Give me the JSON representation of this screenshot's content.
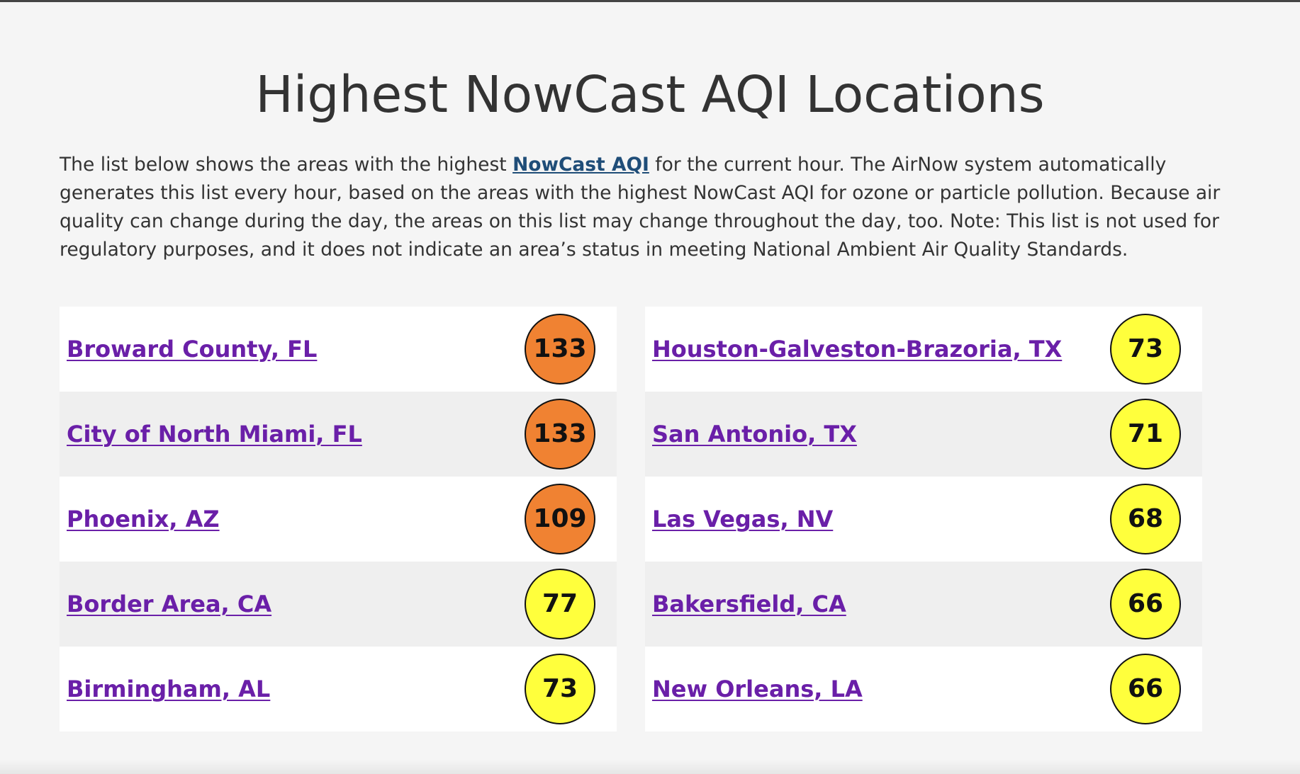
{
  "page": {
    "title": "Highest NowCast AQI Locations",
    "intro_before": "The list below shows the areas with the highest ",
    "intro_link": "NowCast AQI",
    "intro_after": " for the current hour. The AirNow system automatically generates this list every hour, based on the areas with the highest NowCast AQI for ozone or particle pollution. Because air quality can change during the day, the areas on this list may change throughout the day, too. Note: This list is not used for regulatory purposes, and it does not indicate an area’s status in meeting National Ambient Air Quality Standards."
  },
  "colors": {
    "orange": "#f08232",
    "yellow": "#ffff3c",
    "link": "#6a1fa8",
    "intro_link": "#1f4d78"
  },
  "left_column": [
    {
      "location": "Broward County, FL",
      "aqi": "133",
      "category": "orange"
    },
    {
      "location": "City of North Miami, FL",
      "aqi": "133",
      "category": "orange"
    },
    {
      "location": "Phoenix, AZ",
      "aqi": "109",
      "category": "orange"
    },
    {
      "location": "Border Area, CA",
      "aqi": "77",
      "category": "yellow"
    },
    {
      "location": "Birmingham, AL",
      "aqi": "73",
      "category": "yellow"
    }
  ],
  "right_column": [
    {
      "location": "Houston-Galveston-Brazoria, TX",
      "aqi": "73",
      "category": "yellow"
    },
    {
      "location": "San Antonio, TX",
      "aqi": "71",
      "category": "yellow"
    },
    {
      "location": "Las Vegas, NV",
      "aqi": "68",
      "category": "yellow"
    },
    {
      "location": "Bakersfield, CA",
      "aqi": "66",
      "category": "yellow"
    },
    {
      "location": "New Orleans, LA",
      "aqi": "66",
      "category": "yellow"
    }
  ]
}
